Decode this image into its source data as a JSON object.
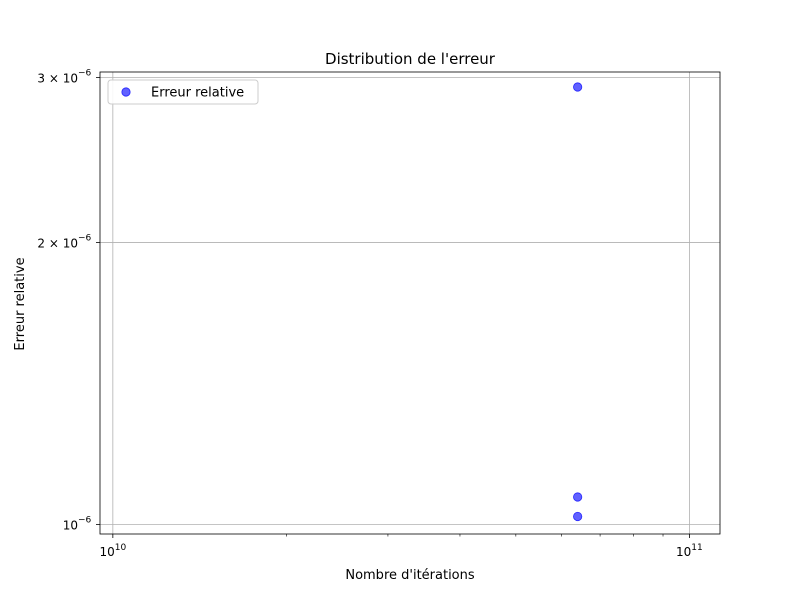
{
  "chart_data": {
    "type": "scatter",
    "title": "Distribution de l'erreur",
    "xlabel": "Nombre d'itérations",
    "ylabel": "Erreur relative",
    "xscale": "log",
    "yscale": "log",
    "xlim": [
      9500000000.0,
      113000000000.0
    ],
    "ylim": [
      9.77e-07,
      3.04e-06
    ],
    "grid": true,
    "legend_position": "top-left",
    "series": [
      {
        "name": "Erreur relative",
        "color": "#0000ff",
        "points": [
          {
            "x": 64000000000.0,
            "y": 2.93e-06
          },
          {
            "x": 64000000000.0,
            "y": 1.07e-06
          },
          {
            "x": 64000000000.0,
            "y": 1.02e-06
          }
        ]
      }
    ],
    "x_ticks": [
      {
        "value": 10000000000.0,
        "mantissa": "10",
        "exponent": "10"
      },
      {
        "value": 100000000000.0,
        "mantissa": "10",
        "exponent": "11"
      }
    ],
    "x_minor_ticks": [
      20000000000.0,
      30000000000.0,
      40000000000.0,
      50000000000.0,
      60000000000.0,
      70000000000.0,
      80000000000.0,
      90000000000.0
    ],
    "y_ticks": [
      {
        "value": 1e-06,
        "mantissa": "10",
        "exponent": "−6"
      },
      {
        "value": 2e-06,
        "mantissa": "2 × 10",
        "exponent": "−6"
      },
      {
        "value": 3e-06,
        "mantissa": "3 × 10",
        "exponent": "−6"
      }
    ]
  }
}
